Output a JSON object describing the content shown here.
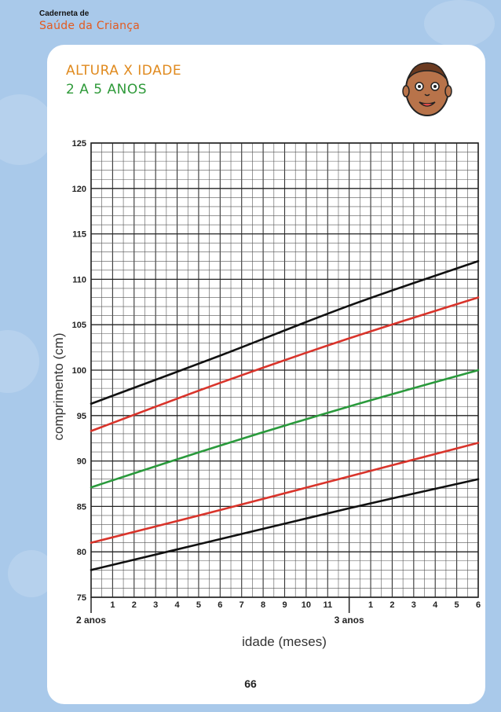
{
  "header": {
    "small": "Caderneta de",
    "brand": "Saúde da Criança"
  },
  "title": {
    "line1": "ALTURA X IDADE",
    "line2": "2 A 5 ANOS"
  },
  "page_number": "66",
  "icons": {
    "face": "baby-face-icon"
  },
  "colors": {
    "black": "#111111",
    "red": "#d9342b",
    "green": "#2a9a3c",
    "orange": "#e08a1e",
    "brand": "#e35a1f"
  },
  "chart_data": {
    "type": "line",
    "xlabel": "idade (meses)",
    "ylabel": "comprimento (cm)",
    "xlim": [
      24,
      42
    ],
    "ylim": [
      75,
      125
    ],
    "y_ticks": [
      75,
      80,
      85,
      90,
      95,
      100,
      105,
      110,
      115,
      120,
      125
    ],
    "x_tick_labels": [
      "1",
      "2",
      "3",
      "4",
      "5",
      "6",
      "7",
      "8",
      "9",
      "10",
      "11",
      "1",
      "2",
      "3",
      "4",
      "5",
      "6"
    ],
    "x_year_labels": [
      {
        "x": 24,
        "label": "2 anos"
      },
      {
        "x": 36,
        "label": "3 anos"
      }
    ],
    "grid": true,
    "series": [
      {
        "color": "black",
        "x": [
          24,
          30,
          36,
          42
        ],
        "values": [
          96.3,
          101.6,
          107.1,
          112.0
        ]
      },
      {
        "color": "red",
        "x": [
          24,
          30,
          36,
          42
        ],
        "values": [
          93.3,
          98.6,
          103.5,
          108.0
        ]
      },
      {
        "color": "green",
        "x": [
          24,
          30,
          36,
          42
        ],
        "values": [
          87.1,
          91.7,
          96.0,
          100.0
        ]
      },
      {
        "color": "red",
        "x": [
          24,
          30,
          36,
          42
        ],
        "values": [
          81.0,
          84.6,
          88.3,
          92.0
        ]
      },
      {
        "color": "black",
        "x": [
          24,
          30,
          36,
          42
        ],
        "values": [
          78.0,
          81.4,
          84.8,
          88.0
        ]
      }
    ]
  }
}
